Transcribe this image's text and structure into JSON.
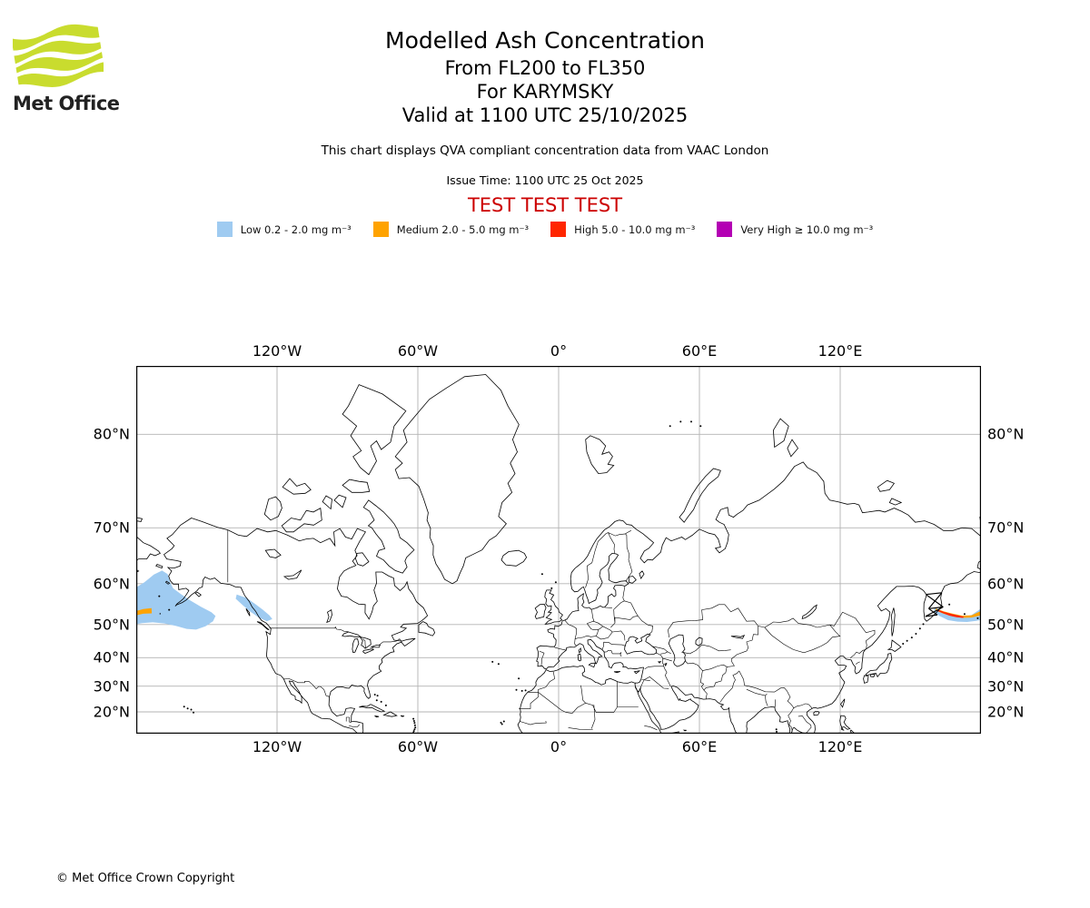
{
  "header": {
    "title": "Modelled Ash Concentration",
    "subtitle_levels": "From FL200 to FL350",
    "subtitle_volcano": "For KARYMSKY",
    "subtitle_valid": "Valid at 1100 UTC 25/10/2025",
    "note": "This chart displays QVA compliant concentration data from VAAC London",
    "issue_time": "Issue Time: 1100 UTC 25 Oct 2025",
    "test_banner": "TEST TEST TEST",
    "test_color": "#CC0000"
  },
  "logo": {
    "text": "Met Office",
    "wave_color": "#C9DC2E"
  },
  "legend": [
    {
      "label": "Low 0.2 - 2.0 mg m⁻³",
      "color": "#9FCBF1"
    },
    {
      "label": "Medium 2.0 - 5.0 mg m⁻³",
      "color": "#FFA300"
    },
    {
      "label": "High 5.0 - 10.0 mg m⁻³",
      "color": "#FF2600"
    },
    {
      "label": "Very High  ≥  10.0 mg m⁻³",
      "color": "#B400B4"
    }
  ],
  "map": {
    "grid_color": "#B3B3B3",
    "frame_color": "#000000",
    "extent": {
      "lon_min": -180,
      "lon_max": 180,
      "lat_min": 11,
      "lat_max": 84
    },
    "lon_ticks": [
      {
        "lon": -120,
        "label": "120°W"
      },
      {
        "lon": -60,
        "label": "60°W"
      },
      {
        "lon": 0,
        "label": "0°"
      },
      {
        "lon": 60,
        "label": "60°E"
      },
      {
        "lon": 120,
        "label": "120°E"
      }
    ],
    "lat_ticks": [
      {
        "lat": 80,
        "label": "80°N"
      },
      {
        "lat": 70,
        "label": "70°N"
      },
      {
        "lat": 60,
        "label": "60°N"
      },
      {
        "lat": 50,
        "label": "50°N"
      },
      {
        "lat": 40,
        "label": "40°N"
      },
      {
        "lat": 30,
        "label": "30°N"
      },
      {
        "lat": 20,
        "label": "20°N"
      }
    ]
  },
  "volcano": {
    "name": "KARYMSKY",
    "lon": 159.4,
    "lat": 54.0
  },
  "ash_areas": {
    "low": {
      "color": "#9FCBF1",
      "polygons": [
        [
          -180,
          59.2,
          -176.5,
          60.3,
          -172.5,
          61.9,
          -169,
          62.7,
          -166.6,
          62,
          -165.6,
          60.3,
          -164.3,
          59,
          -161,
          57.7,
          -157,
          56.2,
          -152.5,
          54.7,
          -148,
          53.3,
          -146.2,
          52.3,
          -147.3,
          50.9,
          -150.5,
          49.5,
          -154.5,
          48.6,
          -158.5,
          48.8,
          -163,
          49.6,
          -168,
          50.3,
          -173,
          50.6,
          -177.5,
          50.4,
          -180,
          50.1
        ],
        [
          -137.2,
          57.6,
          -133,
          56.8,
          -129.5,
          55.4,
          -126,
          53.9,
          -123.3,
          52.5,
          -122,
          51.5,
          -124.3,
          50.9,
          -127.8,
          51.9,
          -131.3,
          53.4,
          -134.5,
          55,
          -137.6,
          56.6
        ],
        [
          160.2,
          54.5,
          164,
          53.3,
          168,
          52.3,
          172,
          51.9,
          176,
          52.6,
          180,
          54.2,
          184,
          55,
          188,
          55.4,
          190,
          55.5,
          190,
          52.0,
          186,
          51.9,
          182,
          51.5,
          178,
          51,
          174,
          50.7,
          170,
          50.8,
          166,
          51.2,
          162,
          52.4,
          160,
          53.5
        ]
      ]
    },
    "medium": {
      "color": "#FFA300",
      "polygons": [
        [
          160.8,
          54.2,
          164,
          53.5,
          168,
          52.9,
          172,
          52.4,
          176,
          52.5,
          180,
          53.6,
          183,
          54.1,
          186.5,
          54.3,
          186.6,
          53.0,
          183,
          52.9,
          180,
          52.5,
          176,
          51.9,
          172,
          51.8,
          168,
          52.2,
          164,
          52.9,
          160.5,
          53.8
        ]
      ]
    },
    "high": {
      "color": "#FF2600",
      "polygons": [
        [
          161.5,
          54.0,
          164,
          53.4,
          167,
          52.9,
          170,
          52.5,
          172.6,
          52.1,
          172.4,
          51.8,
          169.5,
          52,
          166.5,
          52.4,
          163.5,
          53.1,
          161.2,
          53.7
        ]
      ]
    },
    "very_high": {
      "color": "#B400B4",
      "polygons": []
    }
  },
  "footer": {
    "copyright": "© Met Office Crown Copyright"
  }
}
